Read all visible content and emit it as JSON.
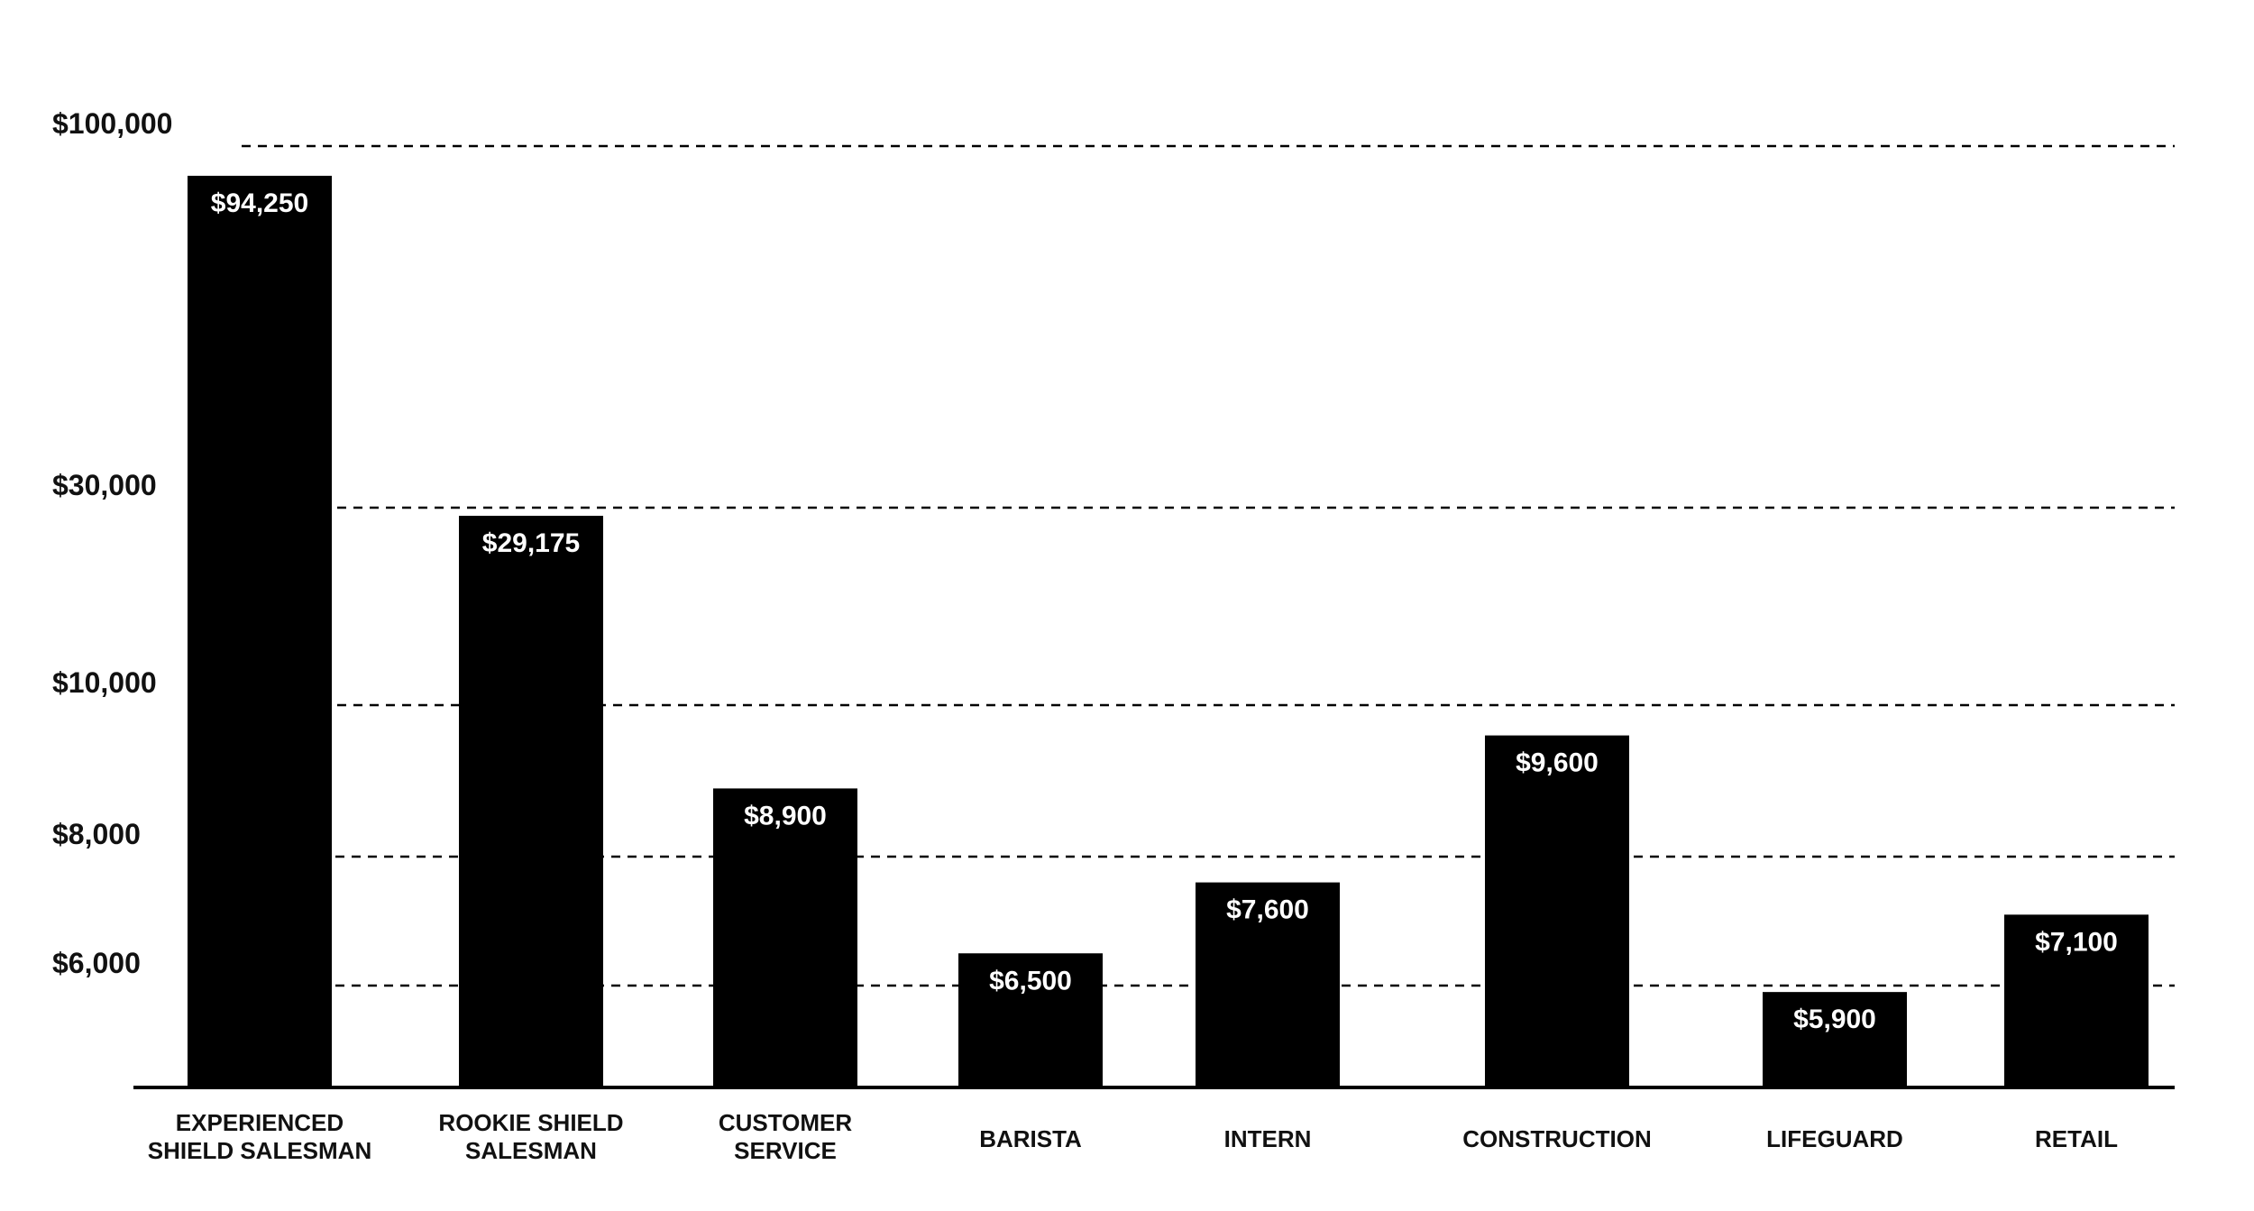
{
  "chart_data": {
    "type": "bar",
    "title": "",
    "xlabel": "",
    "ylabel": "",
    "categories": [
      [
        "EXPERIENCED",
        "SHIELD SALESMAN"
      ],
      [
        "ROOKIE SHIELD",
        "SALESMAN"
      ],
      [
        "CUSTOMER",
        "SERVICE"
      ],
      [
        "BARISTA"
      ],
      [
        "INTERN"
      ],
      [
        "CONSTRUCTION"
      ],
      [
        "LIFEGUARD"
      ],
      [
        "RETAIL"
      ]
    ],
    "values": [
      94250,
      29175,
      8900,
      6500,
      7600,
      9600,
      5900,
      7100
    ],
    "value_labels": [
      "$94,250",
      "$29,175",
      "$8,900",
      "$6,500",
      "$7,600",
      "$9,600",
      "$5,900",
      "$7,100"
    ],
    "y_ticks": [
      6000,
      8000,
      10000,
      30000,
      100000
    ],
    "y_tick_labels": [
      "$6,000",
      "$8,000",
      "$10,000",
      "$30,000",
      "$100,000"
    ],
    "y_scale": "non-uniform (tick-spaced)",
    "gridlines": "dashed at each y tick",
    "bar_color": "#000000",
    "value_label_color": "#ffffff",
    "legend": "none"
  }
}
